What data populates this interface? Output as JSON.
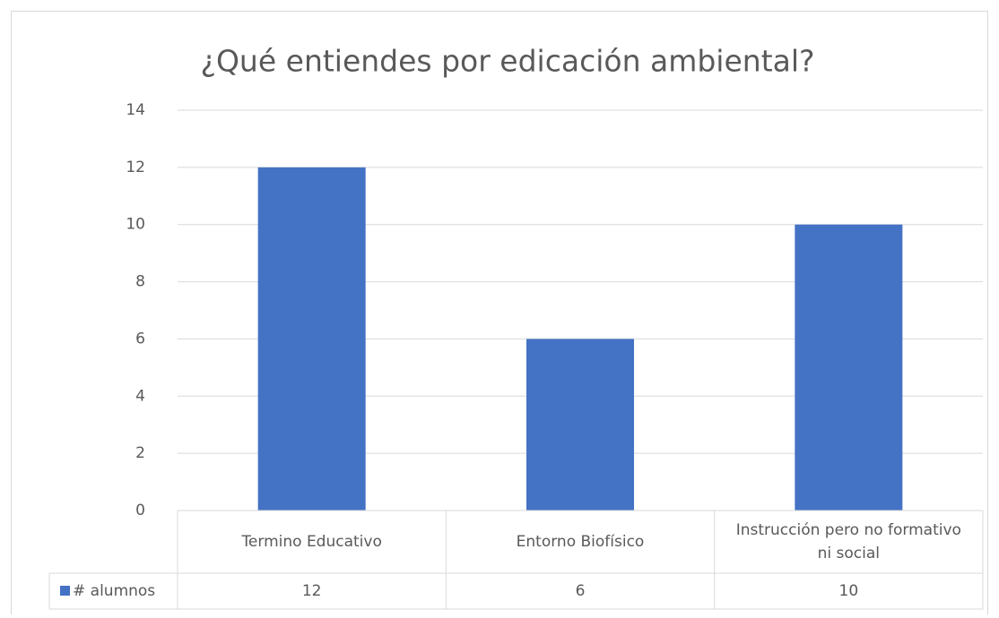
{
  "chart_data": {
    "type": "bar",
    "title": "¿Qué entiendes por edicación ambiental?",
    "categories": [
      "Termino Educativo",
      "Entorno Biofísico",
      "Instrucción pero no formativo ni social"
    ],
    "series": [
      {
        "name": "# alumnos",
        "color": "#4472c4",
        "values": [
          12,
          6,
          10
        ]
      }
    ],
    "ylim": [
      0,
      14
    ],
    "yticks": [
      0,
      2,
      4,
      6,
      8,
      10,
      12,
      14
    ],
    "grid": true,
    "legend": "data-table"
  }
}
